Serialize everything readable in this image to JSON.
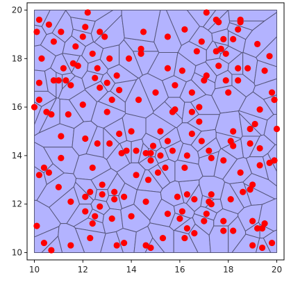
{
  "chart_data": {
    "type": "scatter",
    "xlim": [
      9.7,
      20.3
    ],
    "ylim": [
      9.7,
      20.3
    ],
    "x_ticks": [
      "10",
      "12",
      "14",
      "16",
      "18",
      "20"
    ],
    "y_ticks": [
      "10",
      "12",
      "14",
      "16",
      "18",
      "20"
    ],
    "x_tick_values": [
      10,
      12,
      14,
      16,
      18,
      20
    ],
    "y_tick_values": [
      10,
      12,
      14,
      16,
      18,
      20
    ],
    "grid": false,
    "region": {
      "x": [
        10,
        20
      ],
      "y": [
        10,
        20
      ]
    },
    "colors": {
      "points": "#ff0000",
      "cells_fill": "#b3b3ff",
      "cell_edges": "#55557a"
    },
    "points": [
      [
        10.0,
        16.0
      ],
      [
        10.2,
        19.6
      ],
      [
        10.1,
        19.1
      ],
      [
        10.3,
        18.0
      ],
      [
        10.2,
        17.0
      ],
      [
        10.2,
        16.3
      ],
      [
        10.2,
        13.2
      ],
      [
        10.1,
        11.1
      ],
      [
        10.4,
        10.4
      ],
      [
        10.7,
        10.1
      ],
      [
        10.4,
        13.5
      ],
      [
        10.6,
        13.3
      ],
      [
        10.7,
        15.7
      ],
      [
        10.5,
        15.8
      ],
      [
        10.8,
        17.1
      ],
      [
        10.8,
        18.7
      ],
      [
        10.6,
        19.4
      ],
      [
        11.1,
        19.1
      ],
      [
        11.2,
        17.6
      ],
      [
        11.0,
        17.1
      ],
      [
        11.3,
        17.1
      ],
      [
        11.5,
        16.9
      ],
      [
        11.4,
        15.7
      ],
      [
        11.1,
        14.8
      ],
      [
        11.1,
        13.9
      ],
      [
        11.0,
        12.7
      ],
      [
        11.5,
        12.1
      ],
      [
        11.5,
        10.3
      ],
      [
        11.6,
        17.8
      ],
      [
        11.7,
        18.5
      ],
      [
        11.8,
        17.7
      ],
      [
        12.0,
        18.9
      ],
      [
        12.1,
        19.3
      ],
      [
        12.2,
        19.9
      ],
      [
        12.0,
        16.1
      ],
      [
        12.1,
        14.7
      ],
      [
        12.4,
        13.5
      ],
      [
        12.1,
        12.3
      ],
      [
        12.3,
        12.5
      ],
      [
        12.1,
        11.7
      ],
      [
        12.4,
        11.2
      ],
      [
        12.5,
        11.5
      ],
      [
        12.3,
        10.6
      ],
      [
        12.4,
        18.2
      ],
      [
        12.6,
        17.6
      ],
      [
        12.5,
        17.2
      ],
      [
        12.7,
        16.8
      ],
      [
        12.7,
        19.1
      ],
      [
        12.9,
        18.9
      ],
      [
        12.6,
        14.5
      ],
      [
        12.8,
        12.8
      ],
      [
        12.7,
        11.9
      ],
      [
        12.8,
        12.4
      ],
      [
        13.0,
        17.0
      ],
      [
        13.1,
        18.0
      ],
      [
        13.2,
        16.3
      ],
      [
        13.0,
        15.8
      ],
      [
        13.1,
        14.5
      ],
      [
        13.3,
        12.2
      ],
      [
        13.2,
        11.4
      ],
      [
        13.4,
        17.3
      ],
      [
        13.5,
        16.7
      ],
      [
        13.5,
        14.9
      ],
      [
        13.6,
        14.1
      ],
      [
        13.8,
        14.2
      ],
      [
        13.7,
        12.3
      ],
      [
        13.4,
        10.3
      ],
      [
        13.3,
        12.5
      ],
      [
        13.7,
        10.4
      ],
      [
        13.9,
        18.0
      ],
      [
        14.0,
        15.0
      ],
      [
        14.2,
        14.2
      ],
      [
        14.0,
        11.5
      ],
      [
        14.2,
        13.2
      ],
      [
        14.4,
        18.2
      ],
      [
        14.4,
        18.4
      ],
      [
        14.5,
        19.1
      ],
      [
        14.3,
        16.3
      ],
      [
        14.6,
        14.1
      ],
      [
        14.7,
        13.0
      ],
      [
        14.6,
        10.3
      ],
      [
        14.8,
        10.2
      ],
      [
        14.6,
        12.1
      ],
      [
        14.8,
        13.8
      ],
      [
        14.8,
        14.1
      ],
      [
        14.9,
        14.4
      ],
      [
        15.0,
        16.6
      ],
      [
        15.2,
        15.0
      ],
      [
        15.2,
        14.0
      ],
      [
        15.1,
        13.3
      ],
      [
        15.4,
        13.5
      ],
      [
        15.5,
        14.6
      ],
      [
        15.3,
        10.6
      ],
      [
        15.5,
        11.6
      ],
      [
        15.5,
        17.6
      ],
      [
        15.5,
        18.9
      ],
      [
        15.8,
        16.9
      ],
      [
        15.7,
        15.8
      ],
      [
        15.8,
        15.9
      ],
      [
        15.7,
        14.2
      ],
      [
        15.9,
        12.3
      ],
      [
        16.0,
        11.4
      ],
      [
        16.1,
        11.7
      ],
      [
        16.3,
        12.4
      ],
      [
        16.3,
        11.0
      ],
      [
        16.2,
        10.6
      ],
      [
        16.2,
        13.5
      ],
      [
        16.3,
        14.0
      ],
      [
        16.1,
        17.5
      ],
      [
        16.2,
        19.2
      ],
      [
        16.5,
        16.6
      ],
      [
        16.5,
        15.8
      ],
      [
        16.5,
        14.9
      ],
      [
        16.8,
        15.4
      ],
      [
        16.9,
        14.6
      ],
      [
        16.6,
        12.2
      ],
      [
        16.6,
        10.8
      ],
      [
        16.8,
        16.0
      ],
      [
        16.7,
        18.3
      ],
      [
        16.9,
        18.7
      ],
      [
        17.0,
        17.1
      ],
      [
        17.1,
        17.3
      ],
      [
        17.2,
        14.2
      ],
      [
        17.3,
        13.9
      ],
      [
        17.3,
        12.4
      ],
      [
        17.1,
        11.6
      ],
      [
        17.0,
        11.3
      ],
      [
        17.2,
        12.1
      ],
      [
        17.3,
        12.0
      ],
      [
        17.1,
        19.9
      ],
      [
        17.5,
        19.6
      ],
      [
        17.6,
        17.7
      ],
      [
        17.5,
        18.3
      ],
      [
        17.7,
        18.4
      ],
      [
        17.6,
        19.5
      ],
      [
        17.8,
        18.8
      ],
      [
        17.9,
        18.2
      ],
      [
        17.9,
        17.1
      ],
      [
        17.8,
        13.8
      ],
      [
        17.8,
        11.3
      ],
      [
        17.8,
        10.9
      ],
      [
        18.2,
        18.8
      ],
      [
        18.4,
        19.2
      ],
      [
        18.0,
        16.6
      ],
      [
        18.2,
        15.0
      ],
      [
        18.1,
        14.6
      ],
      [
        18.2,
        14.4
      ],
      [
        18.2,
        10.9
      ],
      [
        18.1,
        12.2
      ],
      [
        18.4,
        17.6
      ],
      [
        18.4,
        17.1
      ],
      [
        18.5,
        19.5
      ],
      [
        18.5,
        19.6
      ],
      [
        18.5,
        13.3
      ],
      [
        18.6,
        12.5
      ],
      [
        18.8,
        17.6
      ],
      [
        18.9,
        15.1
      ],
      [
        18.9,
        14.5
      ],
      [
        18.9,
        12.6
      ],
      [
        19.0,
        12.8
      ],
      [
        19.0,
        11.3
      ],
      [
        19.1,
        15.3
      ],
      [
        19.3,
        15.9
      ],
      [
        19.3,
        14.3
      ],
      [
        19.3,
        13.6
      ],
      [
        19.2,
        11.0
      ],
      [
        19.4,
        11.0
      ],
      [
        19.5,
        11.2
      ],
      [
        19.2,
        18.6
      ],
      [
        19.5,
        17.5
      ],
      [
        19.8,
        16.6
      ],
      [
        19.9,
        16.3
      ],
      [
        19.4,
        10.2
      ],
      [
        19.8,
        10.4
      ],
      [
        19.0,
        10.3
      ],
      [
        19.7,
        13.7
      ],
      [
        19.9,
        13.8
      ],
      [
        20.0,
        15.1
      ],
      [
        19.7,
        18.1
      ]
    ]
  }
}
